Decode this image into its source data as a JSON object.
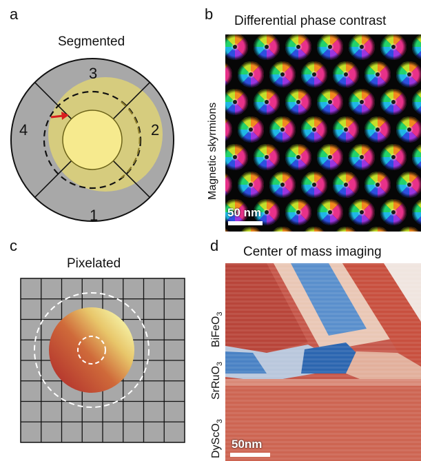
{
  "panels": {
    "a": {
      "letter": "a",
      "title": "Segmented",
      "segments": [
        "1",
        "2",
        "3",
        "4"
      ]
    },
    "b": {
      "letter": "b",
      "title": "Differential phase contrast",
      "side_label": "Magnetic skyrmions",
      "scale_label": "50 nm"
    },
    "c": {
      "letter": "c",
      "title": "Pixelated"
    },
    "d": {
      "letter": "d",
      "title": "Center of mass imaging",
      "layers": {
        "top": {
          "base": "BiFeO",
          "sub": "3"
        },
        "mid": {
          "base": "SrRuO",
          "sub": "3"
        },
        "bottom": {
          "base": "DyScO",
          "sub": "3"
        }
      },
      "scale_label": "50nm"
    }
  },
  "colors": {
    "detector_gray": "#a8a8a8",
    "beam_yellow": "#f3e58a",
    "outer_yellow": "#e6d870",
    "arrow_red": "#d81e1e",
    "com_red": "#c0392b",
    "com_blue": "#3a78c2"
  }
}
